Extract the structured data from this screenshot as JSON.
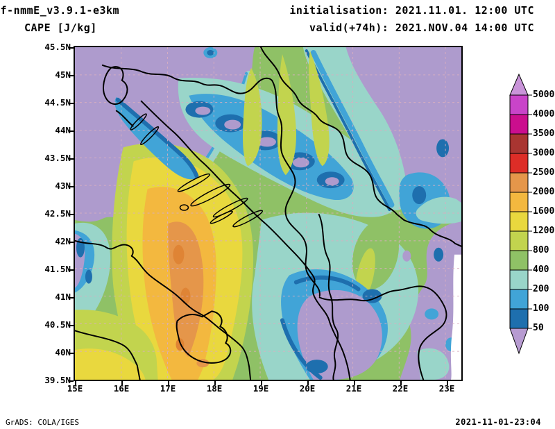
{
  "header": {
    "model_line": "rf-nmmE_v3.9.1-e3km",
    "variable_line": "CAPE [J/kg]",
    "init_line": "initialisation: 2021.11.01. 12:00 UTC",
    "valid_line": "valid(+74h): 2021.NOV.04 14:00 UTC"
  },
  "footer": {
    "generator": "GrADS: COLA/IGES",
    "timestamp": "2021-11-01-23:04"
  },
  "chart_data": {
    "type": "heatmap",
    "title": "CAPE [J/kg]",
    "variable": "CAPE",
    "units": "J/kg",
    "model": "rf-nmmE_v3.9.1-e3km",
    "initialisation": "2021.11.01. 12:00 UTC",
    "valid": "2021.NOV.04 14:00 UTC (+74h)",
    "projection": "lat-lon map, Adriatic / Balkans",
    "lon_range": [
      15,
      23.35
    ],
    "lat_range": [
      39.5,
      45.5
    ],
    "lon_ticks": [
      "15E",
      "16E",
      "17E",
      "18E",
      "19E",
      "20E",
      "21E",
      "22E",
      "23E"
    ],
    "lat_ticks": [
      "45.5N",
      "45N",
      "44.5N",
      "44N",
      "43.5N",
      "43N",
      "42.5N",
      "42N",
      "41.5N",
      "41N",
      "40.5N",
      "40N",
      "39.5N"
    ],
    "grid": "dashed 1-degree lon / 0.5-degree lat graticule",
    "colorbar": {
      "orientation": "vertical, right side, arrow ends",
      "labels_top_to_bottom": [
        "5000",
        "4000",
        "3500",
        "3000",
        "2500",
        "2000",
        "1600",
        "1200",
        "800",
        "400",
        "200",
        "100",
        "50"
      ],
      "levels_ascending": [
        50,
        100,
        200,
        400,
        800,
        1200,
        1600,
        2000,
        2500,
        3000,
        3500,
        4000,
        5000
      ],
      "segment_colors_top_to_bottom": [
        "#c944c9",
        "#cb0e8e",
        "#a93531",
        "#dd2d27",
        "#e5964a",
        "#f3b83f",
        "#e9d83e",
        "#c2d44e",
        "#8fc166",
        "#99d5c9",
        "#41a4d7",
        "#1e6fae"
      ],
      "above_color": "#c994d9",
      "below_color": "#b79bd1"
    },
    "notable_features": [
      {
        "area": "central/southern Adriatic Sea (~16-18E, 40-43.5N)",
        "value_range_J_per_kg": "1200-2500 (orange/gold maximum band)"
      },
      {
        "area": "NE Italy and northern Adriatic (NW corner)",
        "value_range_J_per_kg": "<50 (lavender)"
      },
      {
        "area": "Pannonian plain / Serbia (NE and E edge)",
        "value_range_J_per_kg": "<50 (lavender)"
      },
      {
        "area": "Dinaric mountain belt (NW-SE through Bosnia)",
        "value_range_J_per_kg": "50-400 with spots <50"
      },
      {
        "area": "inland Croatia / lowlands",
        "value_range_J_per_kg": "400-1200 (green/yellow-green)"
      },
      {
        "area": "thin white wedge near 23E south of 41.5N",
        "value_range_J_per_kg": "no data (model domain edge)"
      }
    ]
  },
  "palette": {
    "purple": "#ae9bcd",
    "teal": "#99d5c9",
    "blue": "#41a4d7",
    "darkblue": "#1e6fae",
    "green": "#8fc166",
    "chartreuse": "#c2d44e",
    "yellow": "#e9d83e",
    "gold": "#f3b83f",
    "orange": "#e5964a",
    "deep_orange": "#df8435",
    "white": "#ffffff",
    "black": "#000000",
    "grid_dash": "#d9aec0"
  }
}
